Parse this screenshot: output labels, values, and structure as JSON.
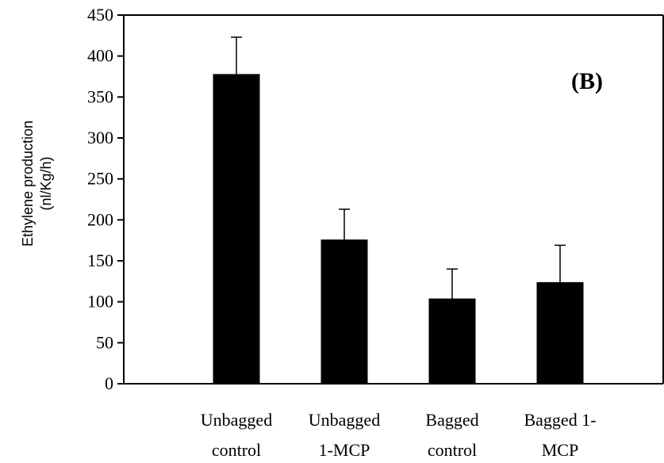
{
  "chart_data": {
    "type": "bar",
    "annotation": "(B)",
    "ylabel": [
      "Ethylene production",
      "(nl/Kg/h)"
    ],
    "ylim": [
      0,
      450
    ],
    "yticks": [
      0,
      50,
      100,
      150,
      200,
      250,
      300,
      350,
      400,
      450
    ],
    "categories": [
      [
        "Unbagged",
        "control"
      ],
      [
        "Unbagged",
        "1-MCP"
      ],
      [
        "Bagged",
        "control"
      ],
      [
        "Bagged 1-",
        "MCP"
      ]
    ],
    "values": [
      378,
      176,
      104,
      124
    ],
    "errors": [
      45,
      37,
      36,
      45
    ],
    "bar_color": "#000000",
    "grid": false
  }
}
